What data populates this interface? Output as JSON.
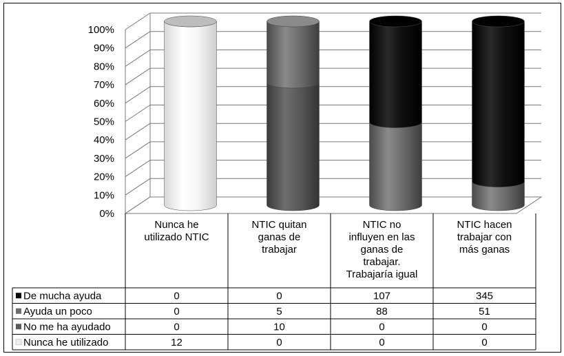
{
  "chart_data": {
    "type": "bar",
    "stacked": "percent",
    "style": "3d-cylinder",
    "title": "",
    "xlabel": "",
    "ylabel": "",
    "ylim": [
      0,
      100
    ],
    "y_ticks": [
      "0%",
      "10%",
      "20%",
      "30%",
      "40%",
      "50%",
      "60%",
      "70%",
      "80%",
      "90%",
      "100%"
    ],
    "categories": [
      [
        "Nunca he",
        "utilizado NTIC"
      ],
      [
        "NTIC quitan",
        "ganas de",
        "trabajar"
      ],
      [
        "NTIC no",
        "influyen en las",
        "ganas de",
        "trabajar.",
        "Trabajaría igual"
      ],
      [
        "NTIC hacen",
        "trabajar con",
        "más ganas"
      ]
    ],
    "series": [
      {
        "name": "De mucha ayuda",
        "values": [
          0,
          0,
          107,
          345
        ],
        "color": "#0a0a0a"
      },
      {
        "name": "Ayuda un poco",
        "values": [
          0,
          5,
          88,
          51
        ],
        "color": "#6e6e6e"
      },
      {
        "name": "No me ha ayudado",
        "values": [
          0,
          10,
          0,
          0
        ],
        "color": "#5a5a5a"
      },
      {
        "name": "Nunca he utilizado",
        "values": [
          12,
          0,
          0,
          0
        ],
        "color": "#efefef"
      }
    ],
    "legend": "data-table-left",
    "grid": true
  }
}
